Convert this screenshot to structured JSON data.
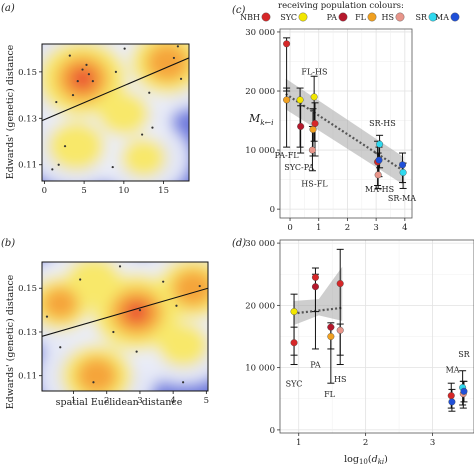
{
  "panels": {
    "a": "(a)",
    "b": "(b)",
    "c": "(c)",
    "d": "(d)"
  },
  "legend": {
    "title": "receiving population colours:",
    "items": [
      {
        "code": "NBH",
        "color": "#d62728"
      },
      {
        "code": "SYC",
        "color": "#f2e600"
      },
      {
        "code": "PA",
        "color": "#b5182c"
      },
      {
        "code": "FL",
        "color": "#f0a020"
      },
      {
        "code": "HS",
        "color": "#e8958a"
      },
      {
        "code": "SR",
        "color": "#2fd8ee"
      },
      {
        "code": "MA",
        "color": "#2050d8"
      }
    ]
  },
  "chart_data": [
    {
      "id": "a",
      "type": "scatter",
      "xlabel": "",
      "ylabel": "Edwards' (genetic) distance",
      "xlim": [
        -0.3,
        18.2
      ],
      "ylim": [
        0.103,
        0.162
      ],
      "xticks": [
        0,
        5,
        10,
        15
      ],
      "yticks": [
        0.11,
        0.13,
        0.15
      ],
      "fit_line": [
        [
          -0.3,
          0.129
        ],
        [
          18.2,
          0.156
        ]
      ],
      "points": [
        [
          3.2,
          0.157
        ],
        [
          4.8,
          0.151
        ],
        [
          4.2,
          0.146
        ],
        [
          5.3,
          0.153
        ],
        [
          6.1,
          0.146
        ],
        [
          3.6,
          0.14
        ],
        [
          1.5,
          0.137
        ],
        [
          5.6,
          0.149
        ],
        [
          13.2,
          0.141
        ],
        [
          16.3,
          0.156
        ],
        [
          17.2,
          0.147
        ],
        [
          2.6,
          0.118
        ],
        [
          12.3,
          0.123
        ],
        [
          1.0,
          0.108
        ],
        [
          1.8,
          0.11
        ],
        [
          8.6,
          0.109
        ],
        [
          13.6,
          0.126
        ],
        [
          16.8,
          0.161
        ],
        [
          10.1,
          0.16
        ],
        [
          9.0,
          0.15
        ]
      ],
      "density_peaks": [
        {
          "x": 4.8,
          "y": 0.147,
          "level": 1.0
        },
        {
          "x": 15.5,
          "y": 0.154,
          "level": 0.75
        },
        {
          "x": 10.0,
          "y": 0.132,
          "level": 0.35
        },
        {
          "x": 4.0,
          "y": 0.118,
          "level": 0.45
        },
        {
          "x": 12.5,
          "y": 0.113,
          "level": 0.25
        }
      ]
    },
    {
      "id": "b",
      "type": "scatter",
      "xlabel": "spatial Euclidean distance",
      "ylabel": "Edwards' (genetic) distance",
      "xlim": [
        0.05,
        5.05
      ],
      "ylim": [
        0.103,
        0.162
      ],
      "xticks": [
        1,
        2,
        3,
        4,
        5
      ],
      "yticks": [
        0.11,
        0.13,
        0.15
      ],
      "fit_line": [
        [
          0.05,
          0.128
        ],
        [
          5.05,
          0.15
        ]
      ],
      "points": [
        [
          0.2,
          0.137
        ],
        [
          1.2,
          0.154
        ],
        [
          2.4,
          0.16
        ],
        [
          3.0,
          0.14
        ],
        [
          3.7,
          0.153
        ],
        [
          4.1,
          0.142
        ],
        [
          4.8,
          0.151
        ],
        [
          1.6,
          0.107
        ],
        [
          2.9,
          0.121
        ],
        [
          0.6,
          0.123
        ],
        [
          4.3,
          0.107
        ],
        [
          2.2,
          0.13
        ]
      ],
      "density_peaks": [
        {
          "x": 2.9,
          "y": 0.139,
          "level": 1.0
        },
        {
          "x": 1.7,
          "y": 0.11,
          "level": 0.7
        },
        {
          "x": 4.6,
          "y": 0.15,
          "level": 0.7
        },
        {
          "x": 0.6,
          "y": 0.143,
          "level": 0.55
        },
        {
          "x": 1.6,
          "y": 0.153,
          "level": 0.45
        },
        {
          "x": 4.3,
          "y": 0.124,
          "level": 0.35
        }
      ]
    },
    {
      "id": "c",
      "type": "scatter",
      "ylabel": "M_{k←i}",
      "xlabel": "",
      "xlim": [
        -0.35,
        4.25
      ],
      "ylim": [
        -1500,
        30500
      ],
      "xticks": [
        0,
        1,
        2,
        3,
        4
      ],
      "yticks": [
        0,
        10000,
        20000,
        30000
      ],
      "ytick_labels": [
        "0",
        "10 000",
        "20 000",
        "30 000"
      ],
      "trend": {
        "x0": -0.15,
        "y0": 19500,
        "x1": 3.95,
        "y1": 6500,
        "band": 2600
      },
      "points": [
        {
          "x": -0.12,
          "y": 28000,
          "lo": 20000,
          "hi": 29000,
          "color": "#d62728"
        },
        {
          "x": -0.12,
          "y": 18500,
          "lo": 10500,
          "hi": 20500,
          "color": "#f0a020"
        },
        {
          "x": 0.35,
          "y": 18500,
          "lo": 10500,
          "hi": 20500,
          "color": "#f2e600"
        },
        {
          "x": 0.37,
          "y": 14000,
          "lo": 9500,
          "hi": 17500,
          "color": "#b5182c"
        },
        {
          "x": 0.8,
          "y": 13500,
          "lo": 9000,
          "hi": 17000,
          "color": "#f0a020"
        },
        {
          "x": 0.84,
          "y": 19000,
          "lo": 11500,
          "hi": 22500,
          "color": "#f2e600"
        },
        {
          "x": 0.87,
          "y": 14500,
          "lo": 9000,
          "hi": 18000,
          "color": "#d62728"
        },
        {
          "x": 0.78,
          "y": 10000,
          "lo": 6500,
          "hi": 14000,
          "color": "#e8958a"
        },
        {
          "x": 3.05,
          "y": 8000,
          "lo": 4000,
          "hi": 11500,
          "color": "#d62728"
        },
        {
          "x": 3.07,
          "y": 5800,
          "lo": 3500,
          "hi": 9500,
          "color": "#e8958a"
        },
        {
          "x": 3.12,
          "y": 11000,
          "lo": 7000,
          "hi": 12500,
          "color": "#2fd8ee"
        },
        {
          "x": 3.1,
          "y": 8300,
          "lo": 5500,
          "hi": 10500,
          "color": "#2050d8"
        },
        {
          "x": 3.92,
          "y": 7500,
          "lo": 4500,
          "hi": 9500,
          "color": "#2050d8"
        },
        {
          "x": 3.94,
          "y": 6200,
          "lo": 3500,
          "hi": 7800,
          "color": "#2fd8ee"
        }
      ],
      "labels": [
        {
          "text": "FL-HS",
          "x": 0.85,
          "y": 22800
        },
        {
          "text": "PA-FL",
          "x": -0.12,
          "y": 8700
        },
        {
          "text": "SYC-PA",
          "x": 0.32,
          "y": 6600
        },
        {
          "text": "HS-FL",
          "x": 0.85,
          "y": 3800
        },
        {
          "text": "SR-HS",
          "x": 3.22,
          "y": 14100
        },
        {
          "text": "MA-HS",
          "x": 3.12,
          "y": 2900
        },
        {
          "text": "SR-MA",
          "x": 3.9,
          "y": 1400
        }
      ]
    },
    {
      "id": "d",
      "type": "scatter",
      "xlabel": "log_{10}(d_{ki})",
      "ylabel": "",
      "xlim": [
        0.72,
        3.62
      ],
      "ylim": [
        -500,
        30500
      ],
      "xticks": [
        1,
        2,
        3
      ],
      "yticks": [
        0,
        10000,
        20000,
        30000
      ],
      "ytick_labels": [
        "0",
        "10 000",
        "20 000",
        "30 000"
      ],
      "trend": {
        "x0": 0.92,
        "y0": 18700,
        "x1": 1.65,
        "y1": 19600,
        "band_lo": [
          [
            0.92,
            16800
          ],
          [
            1.3,
            18400
          ],
          [
            1.65,
            17500
          ]
        ],
        "band_hi": [
          [
            0.92,
            20700
          ],
          [
            1.3,
            21000
          ],
          [
            1.65,
            26200
          ]
        ]
      },
      "points": [
        {
          "x": 0.93,
          "y": 19000,
          "lo": 12000,
          "hi": 21800,
          "color": "#f2e600"
        },
        {
          "x": 0.93,
          "y": 14000,
          "lo": 10500,
          "hi": 16500,
          "color": "#d62728"
        },
        {
          "x": 1.25,
          "y": 24500,
          "lo": 13000,
          "hi": 26000,
          "color": "#d62728"
        },
        {
          "x": 1.25,
          "y": 23000,
          "lo": 19000,
          "hi": 25000,
          "color": "#b5182c"
        },
        {
          "x": 1.48,
          "y": 15000,
          "lo": 7500,
          "hi": 16500,
          "color": "#f0a020"
        },
        {
          "x": 1.48,
          "y": 16500,
          "lo": 13000,
          "hi": 17200,
          "color": "#b5182c"
        },
        {
          "x": 1.62,
          "y": 23500,
          "lo": 10500,
          "hi": 29000,
          "color": "#d62728"
        },
        {
          "x": 1.62,
          "y": 16000,
          "lo": 12000,
          "hi": 17000,
          "color": "#e8958a"
        },
        {
          "x": 3.28,
          "y": 5500,
          "lo": 3500,
          "hi": 7500,
          "color": "#d62728"
        },
        {
          "x": 3.29,
          "y": 4500,
          "lo": 3000,
          "hi": 6500,
          "color": "#2050d8"
        },
        {
          "x": 3.45,
          "y": 6800,
          "lo": 4000,
          "hi": 9500,
          "color": "#2fd8ee"
        },
        {
          "x": 3.46,
          "y": 5800,
          "lo": 3500,
          "hi": 7800,
          "color": "#e8958a"
        },
        {
          "x": 3.47,
          "y": 6200,
          "lo": 4500,
          "hi": 7800,
          "color": "#2050d8"
        }
      ],
      "labels": [
        {
          "text": "SYC",
          "x": 0.93,
          "y": 7000
        },
        {
          "text": "PA",
          "x": 1.25,
          "y": 10000
        },
        {
          "text": "FL",
          "x": 1.46,
          "y": 5300
        },
        {
          "text": "HS",
          "x": 1.62,
          "y": 7700
        },
        {
          "text": "MA",
          "x": 3.3,
          "y": 9200
        },
        {
          "text": "SR",
          "x": 3.47,
          "y": 11700
        }
      ]
    }
  ]
}
